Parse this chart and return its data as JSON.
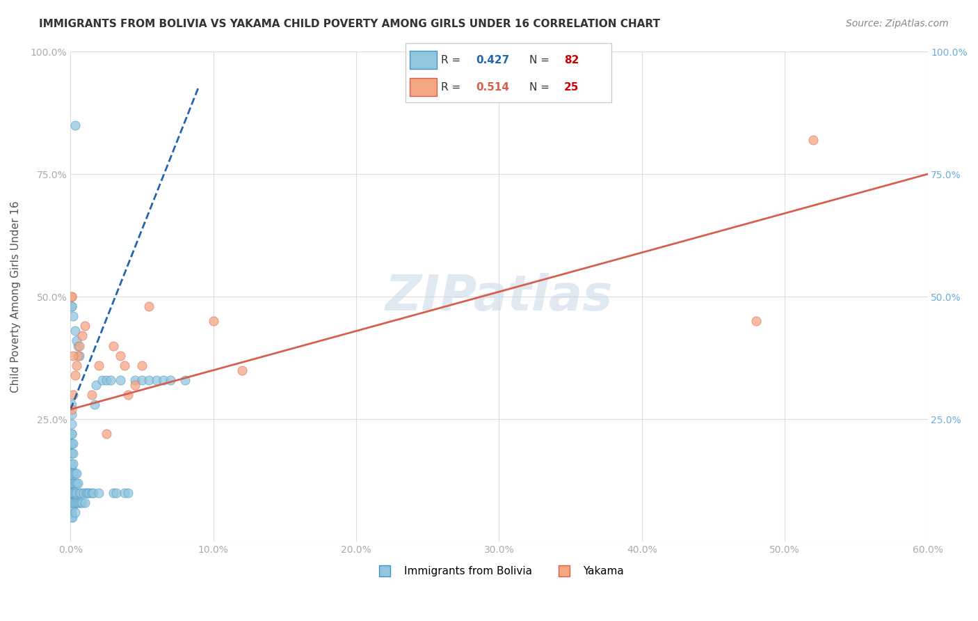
{
  "title": "IMMIGRANTS FROM BOLIVIA VS YAKAMA CHILD POVERTY AMONG GIRLS UNDER 16 CORRELATION CHART",
  "source": "Source: ZipAtlas.com",
  "ylabel": "Child Poverty Among Girls Under 16",
  "xlim": [
    0.0,
    0.6
  ],
  "ylim": [
    0.0,
    1.0
  ],
  "xticks": [
    0.0,
    0.1,
    0.2,
    0.3,
    0.4,
    0.5,
    0.6
  ],
  "yticks": [
    0.0,
    0.25,
    0.5,
    0.75,
    1.0
  ],
  "xticklabels": [
    "0.0%",
    "10.0%",
    "20.0%",
    "30.0%",
    "40.0%",
    "50.0%",
    "60.0%"
  ],
  "yticklabels_left": [
    "",
    "25.0%",
    "50.0%",
    "75.0%",
    "100.0%"
  ],
  "blue_color": "#92c5de",
  "blue_edge": "#4393c3",
  "blue_line_color": "#2166ac",
  "pink_color": "#f4a582",
  "pink_edge": "#d6604d",
  "pink_line_color": "#d6604d",
  "watermark": "ZIPatlas",
  "blue_scatter_x": [
    0.0008,
    0.0008,
    0.0008,
    0.0008,
    0.0008,
    0.0009,
    0.0009,
    0.0009,
    0.001,
    0.001,
    0.001,
    0.001,
    0.001,
    0.001,
    0.001,
    0.001,
    0.001,
    0.001,
    0.001,
    0.001,
    0.0015,
    0.0015,
    0.0015,
    0.002,
    0.002,
    0.002,
    0.002,
    0.002,
    0.002,
    0.002,
    0.003,
    0.003,
    0.003,
    0.003,
    0.003,
    0.004,
    0.004,
    0.004,
    0.004,
    0.005,
    0.005,
    0.006,
    0.006,
    0.007,
    0.007,
    0.008,
    0.009,
    0.01,
    0.011,
    0.012,
    0.013,
    0.015,
    0.016,
    0.017,
    0.018,
    0.02,
    0.022,
    0.025,
    0.028,
    0.03,
    0.032,
    0.035,
    0.038,
    0.04,
    0.045,
    0.05,
    0.055,
    0.06,
    0.065,
    0.07,
    0.08,
    0.001,
    0.001,
    0.002,
    0.003,
    0.005,
    0.006,
    0.003,
    0.004
  ],
  "blue_scatter_y": [
    0.05,
    0.08,
    0.1,
    0.12,
    0.15,
    0.18,
    0.2,
    0.22,
    0.06,
    0.08,
    0.1,
    0.12,
    0.14,
    0.16,
    0.18,
    0.2,
    0.22,
    0.24,
    0.26,
    0.28,
    0.05,
    0.07,
    0.1,
    0.08,
    0.1,
    0.12,
    0.14,
    0.16,
    0.18,
    0.2,
    0.06,
    0.08,
    0.1,
    0.12,
    0.14,
    0.08,
    0.1,
    0.12,
    0.14,
    0.08,
    0.12,
    0.08,
    0.1,
    0.08,
    0.1,
    0.08,
    0.1,
    0.08,
    0.1,
    0.1,
    0.1,
    0.1,
    0.1,
    0.28,
    0.32,
    0.1,
    0.33,
    0.33,
    0.33,
    0.1,
    0.1,
    0.33,
    0.1,
    0.1,
    0.33,
    0.33,
    0.33,
    0.33,
    0.33,
    0.33,
    0.33,
    0.48,
    0.48,
    0.46,
    0.43,
    0.4,
    0.38,
    0.85,
    0.41
  ],
  "pink_scatter_x": [
    0.001,
    0.001,
    0.002,
    0.003,
    0.004,
    0.005,
    0.006,
    0.008,
    0.01,
    0.015,
    0.02,
    0.025,
    0.03,
    0.035,
    0.038,
    0.04,
    0.045,
    0.05,
    0.055,
    0.1,
    0.12,
    0.48,
    0.52,
    0.001,
    0.002
  ],
  "pink_scatter_y": [
    0.27,
    0.5,
    0.3,
    0.34,
    0.36,
    0.38,
    0.4,
    0.42,
    0.44,
    0.3,
    0.36,
    0.22,
    0.4,
    0.38,
    0.36,
    0.3,
    0.32,
    0.36,
    0.48,
    0.45,
    0.35,
    0.45,
    0.82,
    0.5,
    0.38
  ],
  "blue_line_x": [
    0.0,
    0.09
  ],
  "blue_line_y": [
    0.27,
    0.93
  ],
  "pink_line_x": [
    0.0,
    0.6
  ],
  "pink_line_y": [
    0.27,
    0.75
  ]
}
